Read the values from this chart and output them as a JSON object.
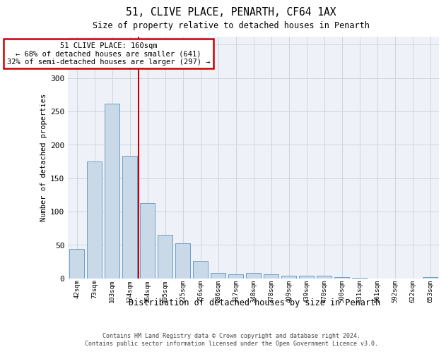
{
  "title_line1": "51, CLIVE PLACE, PENARTH, CF64 1AX",
  "title_line2": "Size of property relative to detached houses in Penarth",
  "xlabel": "Distribution of detached houses by size in Penarth",
  "ylabel": "Number of detached properties",
  "categories": [
    "42sqm",
    "73sqm",
    "103sqm",
    "134sqm",
    "164sqm",
    "195sqm",
    "225sqm",
    "256sqm",
    "286sqm",
    "317sqm",
    "348sqm",
    "378sqm",
    "409sqm",
    "439sqm",
    "470sqm",
    "500sqm",
    "531sqm",
    "561sqm",
    "592sqm",
    "622sqm",
    "653sqm"
  ],
  "values": [
    44,
    175,
    262,
    183,
    113,
    65,
    52,
    26,
    8,
    6,
    8,
    6,
    4,
    4,
    4,
    2,
    1,
    0,
    0,
    0,
    2
  ],
  "bar_color": "#c9d9e8",
  "bar_edge_color": "#6b9ec8",
  "vline_index": 4,
  "vline_color": "#cc0000",
  "annotation_text": "51 CLIVE PLACE: 160sqm\n← 68% of detached houses are smaller (641)\n32% of semi-detached houses are larger (297) →",
  "annotation_box_color": "#ffffff",
  "annotation_box_edge": "#cc0000",
  "grid_color": "#cdd5e0",
  "background_color": "#eef2f8",
  "ylim": [
    0,
    362
  ],
  "yticks": [
    0,
    50,
    100,
    150,
    200,
    250,
    300,
    350
  ],
  "footer_line1": "Contains HM Land Registry data © Crown copyright and database right 2024.",
  "footer_line2": "Contains public sector information licensed under the Open Government Licence v3.0."
}
